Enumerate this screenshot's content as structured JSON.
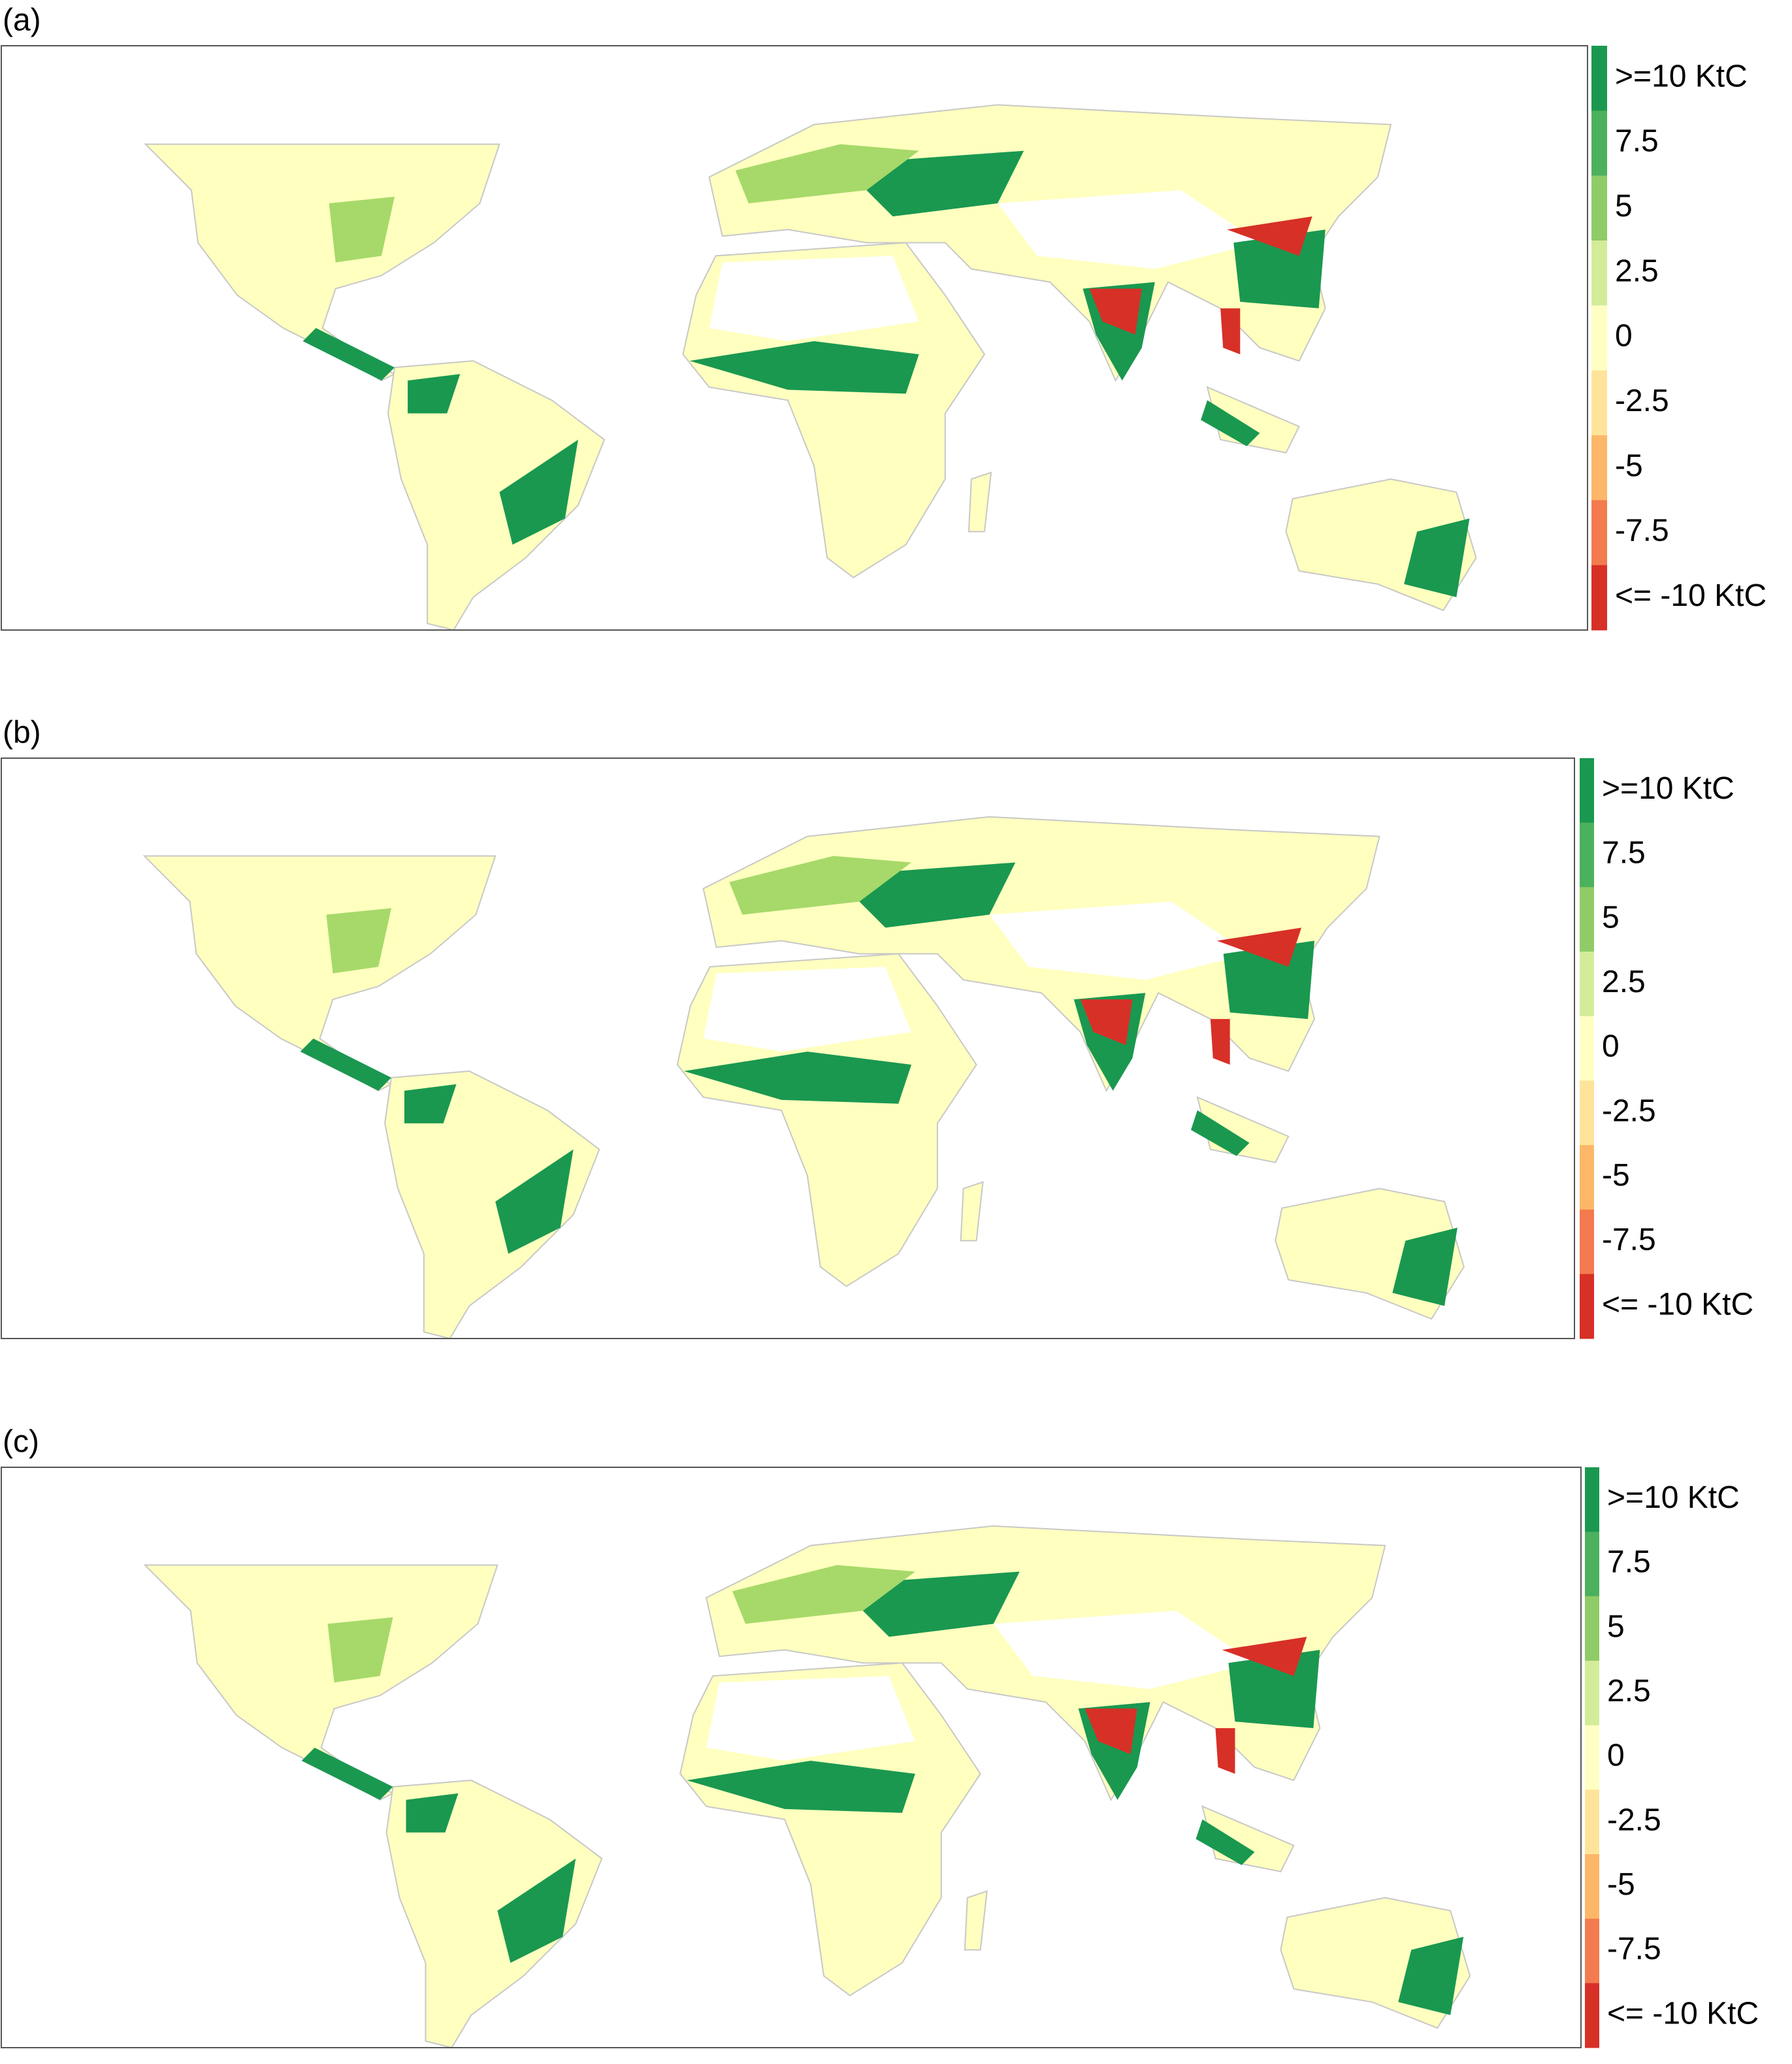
{
  "panels": [
    {
      "label": "(a)"
    },
    {
      "label": "(b)"
    },
    {
      "label": "(c)"
    }
  ],
  "colorbar": {
    "labels": [
      ">=10 KtC",
      "7.5",
      "5",
      "2.5",
      "0",
      "-2.5",
      "-5",
      "-7.5",
      "<= -10 KtC"
    ],
    "colors": [
      "#1a9850",
      "#4cb15c",
      "#8fcc67",
      "#d3ec9a",
      "#ffffc4",
      "#fee49a",
      "#fdb768",
      "#f47a4f",
      "#d73027"
    ]
  }
}
